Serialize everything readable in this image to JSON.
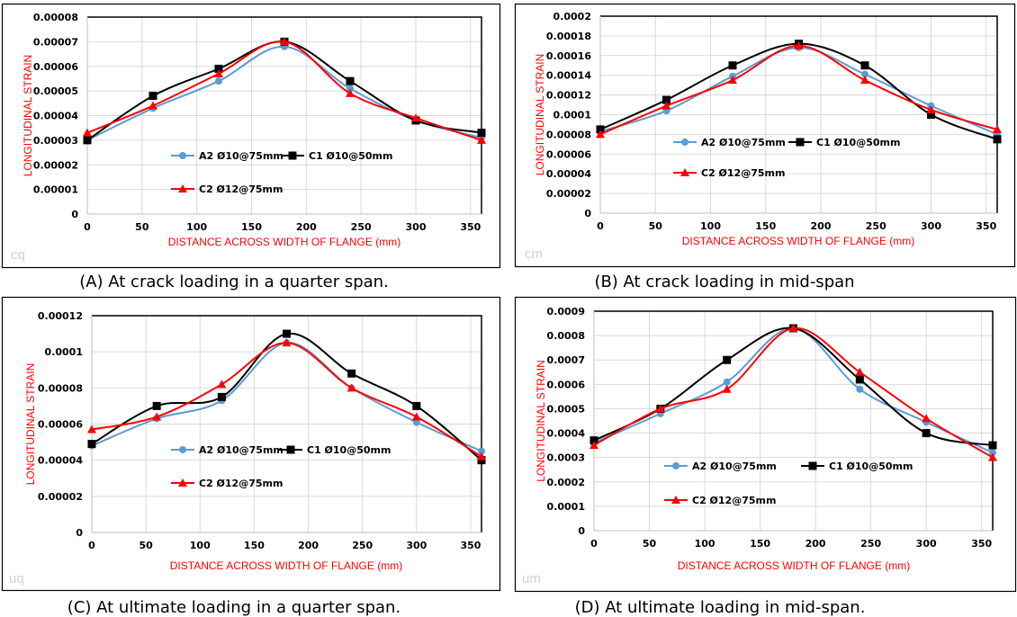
{
  "chart_data": [
    {
      "type": "line",
      "panel": "A",
      "caption": "(A) At crack loading in a quarter span.",
      "watermark": "cq",
      "xlabel": "DISTANCE ACROSS WIDTH OF FLANGE (mm)",
      "ylabel": "LONGITUDINAL STRAIN",
      "xlim": [
        0,
        360
      ],
      "xticks": [
        0,
        50,
        100,
        150,
        200,
        250,
        300,
        350
      ],
      "ylim": [
        0,
        8e-05
      ],
      "yticks": [
        "0",
        "0.00001",
        "0.00002",
        "0.00003",
        "0.00004",
        "0.00005",
        "0.00006",
        "0.00007",
        "0.00008"
      ],
      "grid": true,
      "x": [
        0,
        60,
        120,
        180,
        240,
        300,
        360
      ],
      "series": [
        {
          "name": "A2 Ø10@75mm",
          "color": "#5b9bd5",
          "marker": "circle",
          "values": [
            3e-05,
            4.3e-05,
            5.4e-05,
            6.8e-05,
            5.1e-05,
            3.8e-05,
            3.1e-05
          ]
        },
        {
          "name": "C1 Ø10@50mm",
          "color": "#000000",
          "marker": "square",
          "values": [
            3e-05,
            4.8e-05,
            5.9e-05,
            7e-05,
            5.4e-05,
            3.8e-05,
            3.3e-05
          ]
        },
        {
          "name": "C2 Ø12@75mm",
          "color": "#ff0000",
          "marker": "triangle",
          "values": [
            3.3e-05,
            4.4e-05,
            5.7e-05,
            7e-05,
            4.9e-05,
            3.9e-05,
            3e-05
          ]
        }
      ]
    },
    {
      "type": "line",
      "panel": "B",
      "caption": "(B)  At crack loading in mid-span",
      "watermark": "cm",
      "xlabel": "DISTANCE ACROSS WIDTH OF FLANGE (mm)",
      "ylabel": "LONGITUDINAL STRAIN",
      "xlim": [
        0,
        360
      ],
      "xticks": [
        0,
        50,
        100,
        150,
        200,
        250,
        300,
        350
      ],
      "ylim": [
        0,
        0.0002
      ],
      "yticks": [
        "0",
        "0.00002",
        "0.00004",
        "0.00006",
        "0.00008",
        "0.0001",
        "0.00012",
        "0.00014",
        "0.00016",
        "0.00018",
        "0.0002"
      ],
      "grid": true,
      "x": [
        0,
        60,
        120,
        180,
        240,
        300,
        360
      ],
      "series": [
        {
          "name": "A2 Ø10@75mm",
          "color": "#5b9bd5",
          "marker": "circle",
          "values": [
            8.3e-05,
            0.000104,
            0.000139,
            0.000168,
            0.000141,
            0.000109,
            8e-05
          ]
        },
        {
          "name": "C1 Ø10@50mm",
          "color": "#000000",
          "marker": "square",
          "values": [
            8.5e-05,
            0.000115,
            0.00015,
            0.000172,
            0.00015,
            0.0001,
            7.5e-05
          ]
        },
        {
          "name": "C2 Ø12@75mm",
          "color": "#ff0000",
          "marker": "triangle",
          "values": [
            8e-05,
            0.000109,
            0.000135,
            0.00017,
            0.000135,
            0.000105,
            8.5e-05
          ]
        }
      ]
    },
    {
      "type": "line",
      "panel": "C",
      "caption": "(C) At ultimate loading in a quarter span.",
      "watermark": "uq",
      "xlabel": "DISTANCE ACROSS WIDTH OF FLANGE (mm)",
      "ylabel": "LONGITUDINAL STRAIN",
      "xlim": [
        0,
        360
      ],
      "xticks": [
        0,
        50,
        100,
        150,
        200,
        250,
        300,
        350
      ],
      "ylim": [
        0,
        0.00012
      ],
      "yticks": [
        "0",
        "0.00002",
        "0.00004",
        "0.00006",
        "0.00008",
        "0.0001",
        "0.00012"
      ],
      "grid": true,
      "x": [
        0,
        60,
        120,
        180,
        240,
        300,
        360
      ],
      "series": [
        {
          "name": "A2 Ø10@75mm",
          "color": "#5b9bd5",
          "marker": "circle",
          "values": [
            4.8e-05,
            6.3e-05,
            7.3e-05,
            0.000105,
            8e-05,
            6.1e-05,
            4.5e-05
          ]
        },
        {
          "name": "C1 Ø10@50mm",
          "color": "#000000",
          "marker": "square",
          "values": [
            4.9e-05,
            7e-05,
            7.5e-05,
            0.00011,
            8.8e-05,
            7e-05,
            4e-05
          ]
        },
        {
          "name": "C2 Ø12@75mm",
          "color": "#ff0000",
          "marker": "triangle",
          "values": [
            5.7e-05,
            6.4e-05,
            8.2e-05,
            0.000105,
            8e-05,
            6.4e-05,
            4.2e-05
          ]
        }
      ]
    },
    {
      "type": "line",
      "panel": "D",
      "caption": "(D) At ultimate loading in mid-span.",
      "watermark": "um",
      "xlabel": "DISTANCE ACROSS WIDTH OF FLANGE (mm)",
      "ylabel": "LONGITUDINAL STRAIN",
      "xlim": [
        0,
        360
      ],
      "xticks": [
        0,
        50,
        100,
        150,
        200,
        250,
        300,
        350
      ],
      "ylim": [
        0,
        0.0009
      ],
      "yticks": [
        "0",
        "0.0001",
        "0.0002",
        "0.0003",
        "0.0004",
        "0.0005",
        "0.0006",
        "0.0007",
        "0.0008",
        "0.0009"
      ],
      "grid": true,
      "x": [
        0,
        60,
        120,
        180,
        240,
        300,
        360
      ],
      "series": [
        {
          "name": "A2 Ø10@75mm",
          "color": "#5b9bd5",
          "marker": "circle",
          "values": [
            0.00036,
            0.00048,
            0.00061,
            0.00083,
            0.00058,
            0.000445,
            0.00032
          ]
        },
        {
          "name": "C1 Ø10@50mm",
          "color": "#000000",
          "marker": "square",
          "values": [
            0.00037,
            0.0005,
            0.0007,
            0.00083,
            0.00062,
            0.0004,
            0.00035
          ]
        },
        {
          "name": "C2 Ø12@75mm",
          "color": "#ff0000",
          "marker": "triangle",
          "values": [
            0.00035,
            0.0005,
            0.00058,
            0.00083,
            0.00065,
            0.00046,
            0.0003
          ]
        }
      ]
    }
  ]
}
